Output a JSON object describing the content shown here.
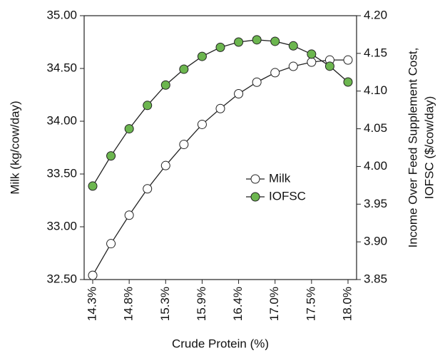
{
  "chart_data": {
    "type": "line",
    "x_label": "Crude Protein (%)",
    "y_label": "Milk (kg/cow/day)",
    "y2_label": [
      "Income Over Feed Supplement Cost,",
      "IOFSC ($/cow/day)"
    ],
    "categories": [
      "14.3%",
      null,
      "14.8%",
      null,
      "15.3%",
      null,
      "15.9%",
      null,
      "16.4%",
      null,
      "17.0%",
      null,
      "17.5%",
      null,
      "18.0%"
    ],
    "series": [
      {
        "name": "Milk",
        "color": "#ffffff",
        "values": [
          32.54,
          32.84,
          33.11,
          33.36,
          33.58,
          33.78,
          33.97,
          34.12,
          34.26,
          34.37,
          34.46,
          34.52,
          34.56,
          34.58,
          34.58
        ]
      },
      {
        "name": "IOFSC",
        "color": "#6cb64f",
        "axis": "y2",
        "values": [
          3.974,
          4.014,
          4.05,
          4.081,
          4.108,
          4.129,
          4.146,
          4.158,
          4.165,
          4.168,
          4.166,
          4.16,
          4.149,
          4.133,
          4.112
        ]
      }
    ],
    "ylim": [
      32.5,
      35
    ],
    "yticks": [
      {
        "value": 32.5,
        "label": "32.50"
      },
      {
        "value": 33,
        "label": "33.00"
      },
      {
        "value": 33.5,
        "label": "33.50"
      },
      {
        "value": 34,
        "label": "34.00"
      },
      {
        "value": 34.5,
        "label": "34.50"
      },
      {
        "value": 35,
        "label": "35.00"
      }
    ],
    "y2lim": [
      3.85,
      4.2
    ],
    "y2ticks": [
      3.85,
      {
        "value": 3.9,
        "label": "3.90"
      },
      3.95,
      {
        "value": 4,
        "label": "4.00"
      },
      4.05,
      {
        "value": 4.1,
        "label": "4.10"
      },
      4.15,
      {
        "value": 4.2,
        "label": "4.20"
      }
    ],
    "legend": "center",
    "grid": false
  }
}
